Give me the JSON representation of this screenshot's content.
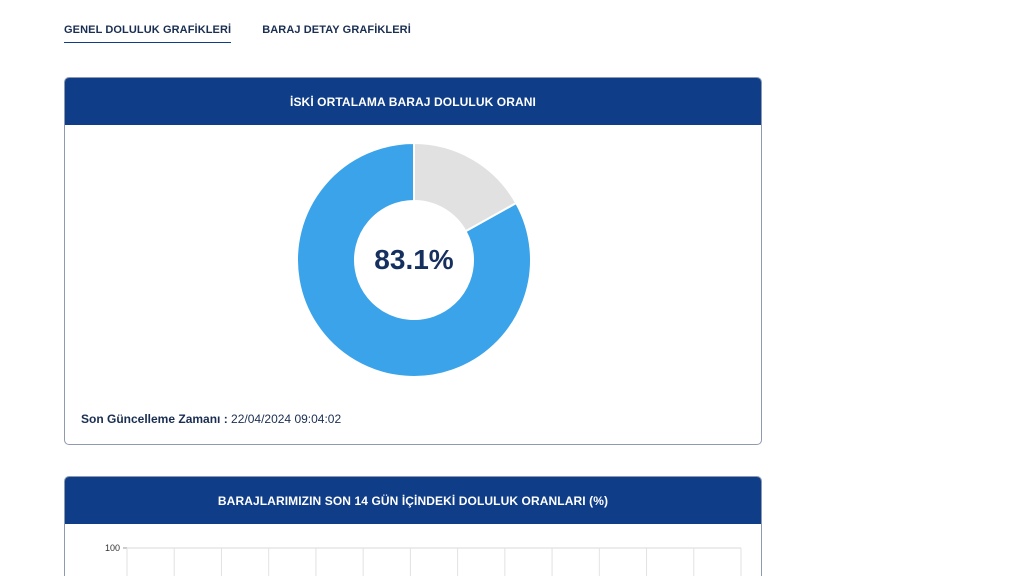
{
  "tabs": [
    {
      "label": "GENEL DOLULUK GRAFİKLERİ",
      "active": true
    },
    {
      "label": "BARAJ DETAY GRAFİKLERİ",
      "active": false
    }
  ],
  "card1": {
    "title": "İSKİ ORTALAMA BARAJ DOLULUK ORANI",
    "center_label": "83.1%",
    "update_label": "Son Güncelleme Zamanı :",
    "update_value": "22/04/2024 09:04:02"
  },
  "card2": {
    "title": "BARAJLARIMIZIN SON 14 GÜN İÇİNDEKİ DOLULUK ORANLARI (%)",
    "y_top_tick": "100"
  },
  "colors": {
    "header": "#0f3d87",
    "filled": "#3aa3ea",
    "empty": "#e1e1e1"
  },
  "chart_data": {
    "type": "pie",
    "title": "İSKİ ORTALAMA BARAJ DOLULUK ORANI",
    "slices": [
      {
        "value": 83.1
      },
      {
        "value": 16.9
      }
    ]
  }
}
